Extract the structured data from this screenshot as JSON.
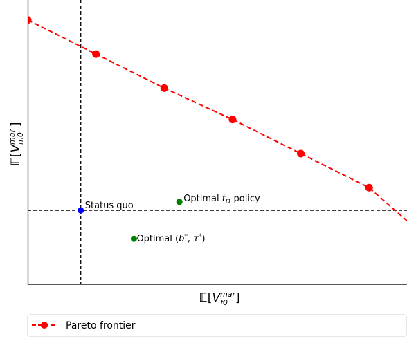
{
  "chart_data": {
    "type": "scatter",
    "xlabel": "𝔼[V_f0^mar]",
    "ylabel": "𝔼[V_m0^mar]",
    "grid": false,
    "xlim": [
      0,
      1
    ],
    "ylim": [
      0,
      1
    ],
    "series": [
      {
        "name": "Pareto frontier",
        "style": "dashed line with markers",
        "color": "#ff0000",
        "x": [
          0.0,
          0.18,
          0.36,
          0.54,
          0.72,
          0.9
        ],
        "y": [
          0.93,
          0.81,
          0.69,
          0.58,
          0.46,
          0.34
        ],
        "line_extends_to": [
          1.02,
          0.2
        ]
      }
    ],
    "points": [
      {
        "label": "Status quo",
        "x": 0.14,
        "y": 0.26,
        "color": "#0000ff"
      },
      {
        "label": "Optimal t_D-policy",
        "x": 0.4,
        "y": 0.29,
        "color": "#008000"
      },
      {
        "label": "Optimal (b*, τ*)",
        "x": 0.28,
        "y": 0.16,
        "color": "#008000"
      }
    ],
    "reference_lines": {
      "vertical_x": 0.14,
      "horizontal_y": 0.26,
      "color": "#000000",
      "style": "dashed"
    },
    "legend": {
      "placement": "bottom",
      "entries": [
        "Pareto frontier"
      ]
    }
  }
}
